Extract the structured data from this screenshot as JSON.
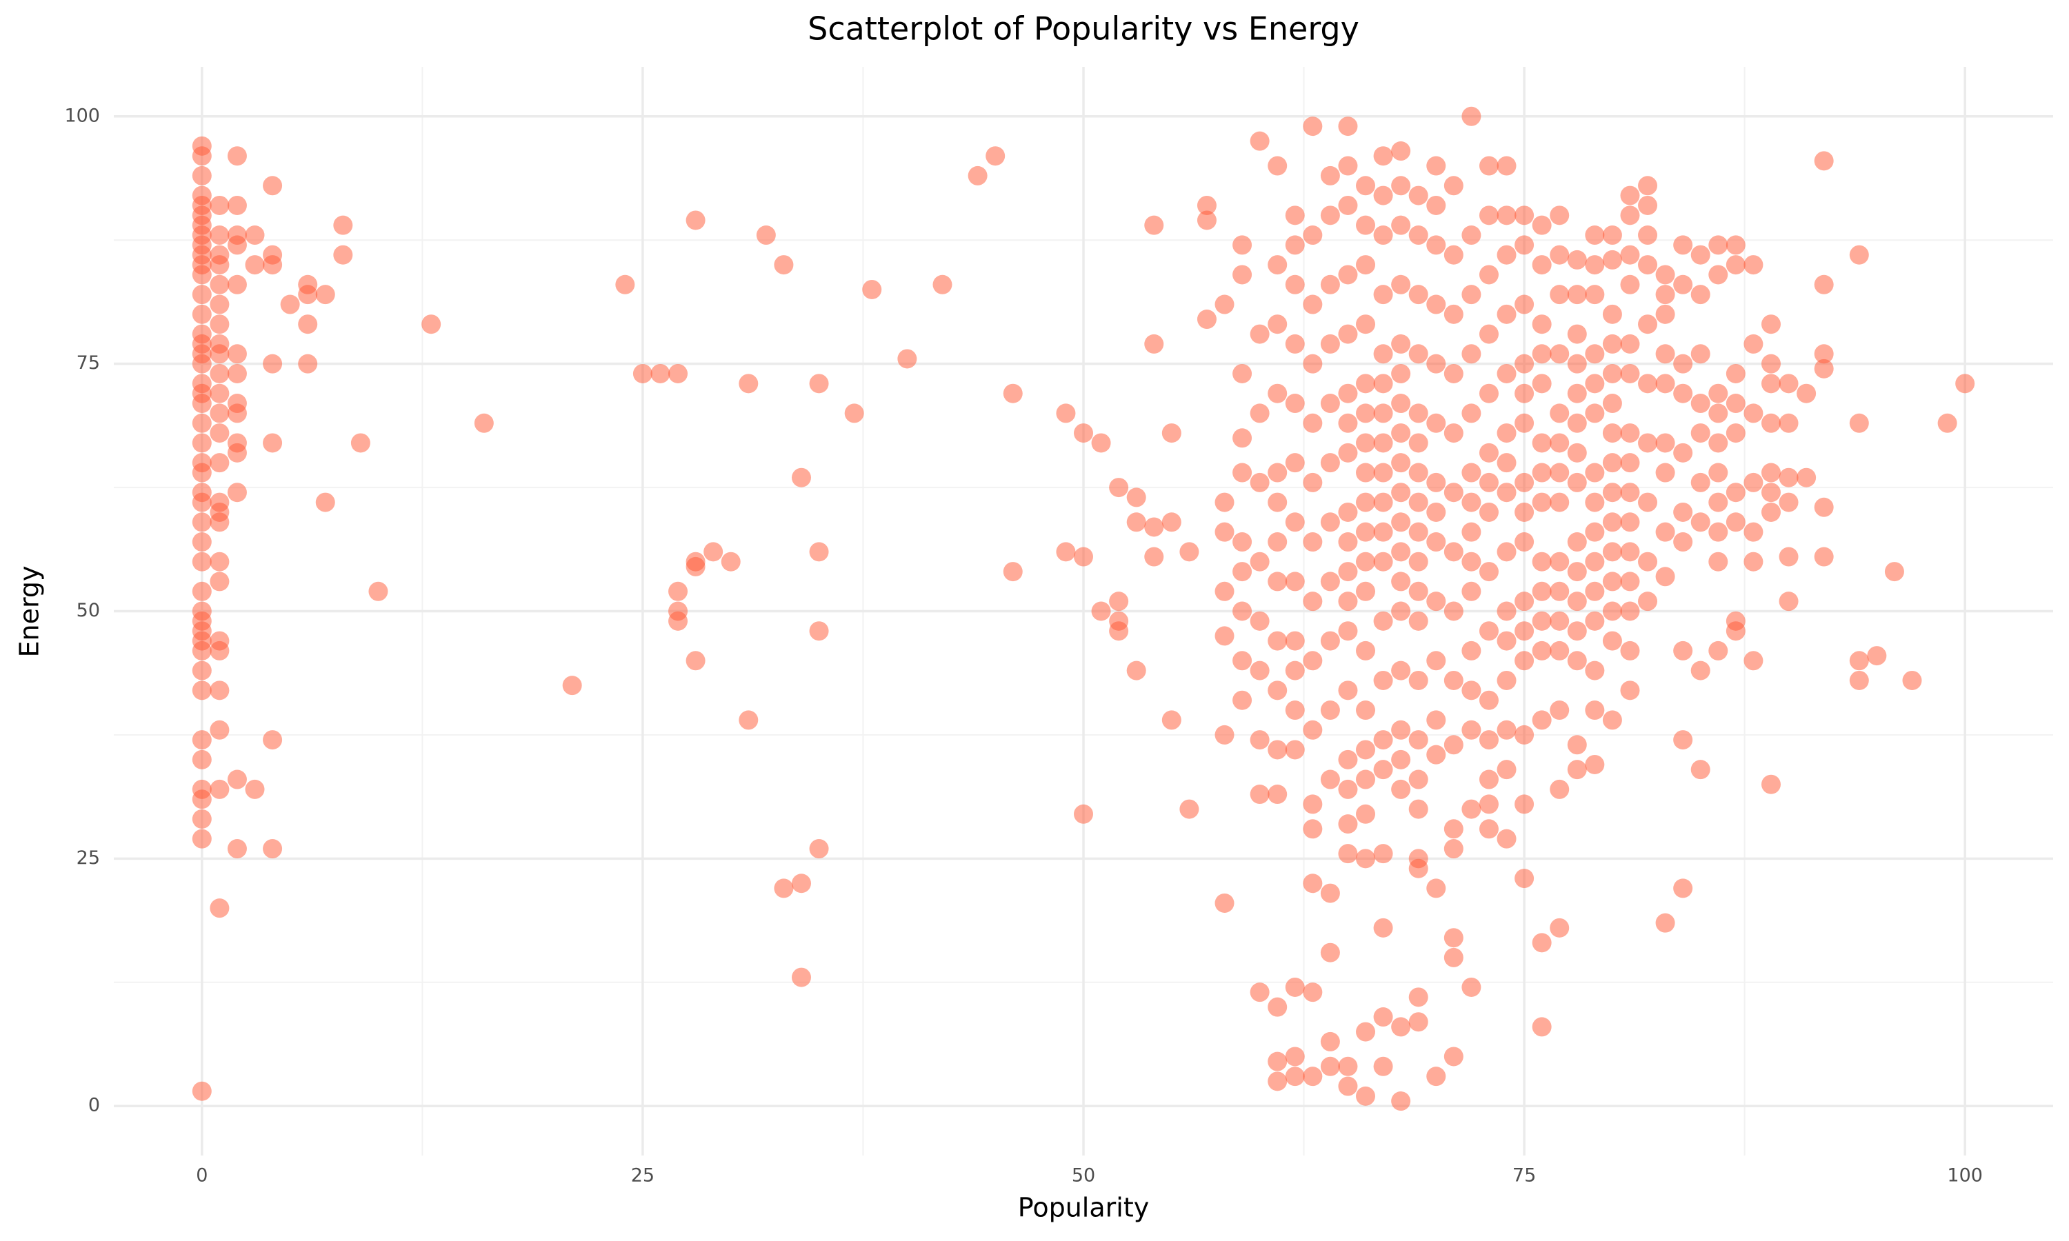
{
  "chart_data": {
    "type": "scatter",
    "title": "Scatterplot of Popularity vs Energy",
    "x_label": "Popularity",
    "y_label": "Energy",
    "xlim": [
      -5,
      105
    ],
    "ylim": [
      -5,
      105
    ],
    "xticks": [
      0,
      25,
      50,
      75,
      100
    ],
    "yticks": [
      0,
      25,
      50,
      75,
      100
    ],
    "x_minor_ticks": [
      12.5,
      37.5,
      62.5,
      87.5
    ],
    "y_minor_ticks": [
      12.5,
      37.5,
      62.5,
      87.5
    ],
    "grid": true,
    "color": "#FF5733",
    "opacity": 0.5,
    "x": [
      0,
      0,
      0,
      0,
      0,
      0,
      0,
      0,
      0,
      0,
      0,
      0,
      0,
      0,
      0,
      0,
      0,
      0,
      0,
      0,
      0,
      0,
      0,
      0,
      0,
      0,
      0,
      0,
      0,
      0,
      0,
      0,
      0,
      0,
      0,
      0,
      0,
      0,
      0,
      0,
      0,
      0,
      0,
      0,
      0,
      1,
      1,
      1,
      1,
      1,
      1,
      1,
      1,
      1,
      1,
      1,
      1,
      1,
      1,
      1,
      1,
      1,
      1,
      1,
      1,
      1,
      1,
      1,
      1,
      1,
      2,
      2,
      2,
      2,
      2,
      2,
      2,
      2,
      2,
      2,
      2,
      2,
      2,
      2,
      3,
      3,
      3,
      4,
      4,
      4,
      4,
      4,
      4,
      4,
      5,
      6,
      6,
      6,
      6,
      7,
      7,
      8,
      8,
      9,
      10,
      13,
      16,
      21,
      24,
      25,
      26,
      27,
      27,
      27,
      27,
      28,
      28,
      28,
      28,
      29,
      30,
      31,
      31,
      32,
      33,
      33,
      34,
      34,
      34,
      35,
      35,
      35,
      35,
      37,
      38,
      40,
      42,
      44,
      45,
      46,
      46,
      49,
      49,
      50,
      50,
      50,
      51,
      51,
      52,
      52,
      52,
      52,
      53,
      53,
      53,
      54,
      54,
      54,
      54,
      55,
      55,
      55,
      56,
      56,
      57,
      57,
      57,
      58,
      58,
      58,
      58,
      58,
      58,
      58,
      59,
      59,
      59,
      59,
      59,
      59,
      59,
      59,
      59,
      59,
      60,
      60,
      60,
      60,
      60,
      60,
      60,
      60,
      60,
      60,
      61,
      61,
      61,
      61,
      61,
      61,
      61,
      61,
      61,
      61,
      61,
      61,
      61,
      61,
      61,
      62,
      62,
      62,
      62,
      62,
      62,
      62,
      62,
      62,
      62,
      62,
      62,
      62,
      62,
      62,
      63,
      63,
      63,
      63,
      63,
      63,
      63,
      63,
      63,
      63,
      63,
      63,
      63,
      63,
      63,
      64,
      64,
      64,
      64,
      64,
      64,
      64,
      64,
      64,
      64,
      64,
      64,
      64,
      64,
      64,
      65,
      65,
      65,
      65,
      65,
      65,
      65,
      65,
      65,
      65,
      65,
      65,
      65,
      65,
      65,
      65,
      65,
      65,
      65,
      65,
      66,
      66,
      66,
      66,
      66,
      66,
      66,
      66,
      66,
      66,
      66,
      66,
      66,
      66,
      66,
      66,
      66,
      66,
      66,
      66,
      67,
      67,
      67,
      67,
      67,
      67,
      67,
      67,
      67,
      67,
      67,
      67,
      67,
      67,
      67,
      67,
      67,
      67,
      67,
      67,
      68,
      68,
      68,
      68,
      68,
      68,
      68,
      68,
      68,
      68,
      68,
      68,
      68,
      68,
      68,
      68,
      68,
      68,
      68,
      68,
      69,
      69,
      69,
      69,
      69,
      69,
      69,
      69,
      69,
      69,
      69,
      69,
      69,
      69,
      69,
      69,
      69,
      69,
      69,
      69,
      70,
      70,
      70,
      70,
      70,
      70,
      70,
      70,
      70,
      70,
      70,
      70,
      70,
      70,
      70,
      71,
      71,
      71,
      71,
      71,
      71,
      71,
      71,
      71,
      71,
      71,
      71,
      71,
      71,
      71,
      72,
      72,
      72,
      72,
      72,
      72,
      72,
      72,
      72,
      72,
      72,
      72,
      72,
      72,
      72,
      73,
      73,
      73,
      73,
      73,
      73,
      73,
      73,
      73,
      73,
      73,
      73,
      73,
      73,
      73,
      74,
      74,
      74,
      74,
      74,
      74,
      74,
      74,
      74,
      74,
      74,
      74,
      74,
      74,
      74,
      75,
      75,
      75,
      75,
      75,
      75,
      75,
      75,
      75,
      75,
      75,
      75,
      75,
      75,
      75,
      76,
      76,
      76,
      76,
      76,
      76,
      76,
      76,
      76,
      76,
      76,
      76,
      76,
      76,
      76,
      77,
      77,
      77,
      77,
      77,
      77,
      77,
      77,
      77,
      77,
      77,
      77,
      77,
      77,
      77,
      78,
      78,
      78,
      78,
      78,
      78,
      78,
      78,
      78,
      78,
      78,
      78,
      78,
      78,
      78,
      79,
      79,
      79,
      79,
      79,
      79,
      79,
      79,
      79,
      79,
      79,
      79,
      79,
      79,
      79,
      80,
      80,
      80,
      80,
      80,
      80,
      80,
      80,
      80,
      80,
      80,
      80,
      80,
      80,
      80,
      81,
      81,
      81,
      81,
      81,
      81,
      81,
      81,
      81,
      81,
      81,
      81,
      81,
      81,
      81,
      82,
      82,
      82,
      82,
      82,
      82,
      82,
      82,
      82,
      82,
      83,
      83,
      83,
      83,
      83,
      83,
      83,
      83,
      83,
      83,
      84,
      84,
      84,
      84,
      84,
      84,
      84,
      84,
      84,
      84,
      85,
      85,
      85,
      85,
      85,
      85,
      85,
      85,
      85,
      86,
      86,
      86,
      86,
      86,
      86,
      86,
      86,
      86,
      86,
      87,
      87,
      87,
      87,
      87,
      87,
      87,
      87,
      87,
      88,
      88,
      88,
      88,
      88,
      88,
      88,
      89,
      89,
      89,
      89,
      89,
      89,
      89,
      89,
      90,
      90,
      90,
      90,
      90,
      90,
      91,
      91,
      92,
      92,
      92,
      92,
      92,
      92,
      94,
      94,
      94,
      94,
      95,
      96,
      97,
      99,
      100
    ],
    "values": [
      97,
      96,
      94,
      92,
      91,
      90,
      89,
      88,
      87,
      86,
      85,
      84,
      82,
      80,
      78,
      77,
      76,
      75,
      73,
      72,
      71,
      69,
      67,
      65,
      64,
      62,
      61,
      59,
      57,
      55,
      52,
      50,
      49,
      48,
      47,
      46,
      44,
      42,
      37,
      35,
      32,
      31,
      29,
      27,
      1.5,
      91,
      88,
      86,
      85,
      83,
      81,
      79,
      77,
      76,
      74,
      72,
      70,
      68,
      65,
      61,
      60,
      59,
      55,
      53,
      47,
      46,
      42,
      38,
      32,
      20,
      96,
      91,
      88,
      87,
      83,
      76,
      74,
      71,
      70,
      67,
      66,
      62,
      33,
      26,
      88,
      85,
      32,
      93,
      86,
      85,
      75,
      67,
      37,
      26,
      81,
      83,
      82,
      79,
      75,
      82,
      61,
      89,
      86,
      67,
      52,
      79,
      69,
      42.5,
      83,
      74,
      74,
      74,
      52,
      50,
      49,
      89.5,
      55,
      54.5,
      45,
      56,
      55,
      73,
      39,
      88,
      85,
      22,
      63.5,
      22.5,
      13,
      73,
      56,
      48,
      26,
      70,
      82.5,
      75.5,
      83,
      94,
      96,
      72,
      54,
      70,
      56,
      68,
      55.5,
      29.5,
      67,
      50,
      62.5,
      51,
      49,
      48,
      61.5,
      59,
      44,
      89,
      77,
      58.5,
      55.5,
      68,
      59,
      39,
      56,
      30,
      91,
      89.5,
      79.5,
      81,
      61,
      58,
      52,
      47.5,
      37.5,
      20.5,
      87,
      84,
      74,
      67.5,
      64,
      57,
      54,
      50,
      45,
      41,
      97.5,
      78,
      70,
      63,
      55,
      49,
      44,
      37,
      31.5,
      11.5,
      95,
      85,
      79,
      72,
      64,
      61,
      57,
      53,
      47,
      42,
      36,
      31.5,
      10,
      4.5,
      2.5,
      90,
      87,
      83,
      77,
      71,
      65,
      59,
      53,
      47,
      44,
      40,
      36,
      12,
      5,
      3,
      99,
      88,
      81,
      75,
      69,
      63,
      57,
      51,
      45,
      38,
      30.5,
      28,
      22.5,
      11.5,
      3,
      94,
      90,
      83,
      77,
      71,
      65,
      59,
      53,
      47,
      40,
      33,
      21.5,
      15.5,
      6.5,
      4,
      99,
      95,
      91,
      84,
      78,
      72,
      69,
      66,
      60,
      57,
      54,
      51,
      48,
      42,
      35,
      32,
      28.5,
      25.5,
      4,
      2,
      93,
      89,
      85,
      79,
      73,
      70,
      67,
      64,
      61,
      58,
      55,
      52,
      46,
      40,
      36,
      33,
      29.5,
      25,
      7.5,
      1,
      96,
      92,
      88,
      82,
      76,
      73,
      70,
      67,
      64,
      61,
      58,
      55,
      49,
      43,
      37,
      34,
      25.5,
      18,
      9,
      4,
      96.5,
      93,
      89,
      83,
      77,
      74,
      71,
      68,
      65,
      62,
      59,
      56,
      53,
      50,
      44,
      38,
      35,
      32,
      8,
      0.5,
      92,
      88,
      82,
      76,
      70,
      67,
      64,
      61,
      58,
      55,
      52,
      49,
      43,
      37,
      33,
      30,
      25,
      24,
      11,
      8.5,
      95,
      91,
      87,
      81,
      75,
      69,
      63,
      60,
      57,
      51,
      45,
      39,
      35.5,
      22,
      3,
      93,
      86,
      80,
      74,
      68,
      62,
      56,
      50,
      43,
      36.5,
      28,
      26,
      17,
      15,
      5,
      100,
      88,
      82,
      76,
      70,
      64,
      61,
      58,
      55,
      52,
      46,
      42,
      38,
      30,
      12,
      95,
      90,
      84,
      78,
      72,
      66,
      63,
      60,
      54,
      48,
      41,
      37,
      33,
      30.5,
      28,
      95,
      90,
      86,
      80,
      74,
      68,
      65,
      62,
      56,
      50,
      47,
      43,
      38,
      34,
      27,
      90,
      87,
      81,
      75,
      72,
      69,
      63,
      60,
      57,
      51,
      48,
      45,
      37.5,
      30.5,
      23,
      89,
      85,
      79,
      76,
      73,
      67,
      64,
      61,
      55,
      52,
      49,
      46,
      39,
      16.5,
      8,
      90,
      86,
      82,
      76,
      70,
      67,
      64,
      61,
      55,
      52,
      49,
      46,
      40,
      32,
      18,
      85.5,
      82,
      78,
      75,
      72,
      69,
      66,
      63,
      57,
      54,
      51,
      48,
      45,
      36.5,
      34,
      88,
      85,
      82,
      76,
      73,
      70,
      64,
      61,
      58,
      55,
      52,
      49,
      44,
      40,
      34.5,
      88,
      85.5,
      80,
      77,
      74,
      71,
      68,
      65,
      62,
      59,
      56,
      53,
      50,
      47,
      39,
      92,
      90,
      86,
      83,
      77,
      74,
      68,
      65,
      62,
      59,
      56,
      53,
      50,
      46,
      42,
      93,
      91,
      88,
      85,
      79,
      73,
      67,
      61,
      55,
      51,
      84,
      82,
      80,
      76,
      73,
      67,
      64,
      58,
      53.5,
      18.5,
      87,
      83,
      75,
      72,
      66,
      60,
      57,
      46,
      37,
      22,
      86,
      82,
      76,
      71,
      68,
      63,
      59,
      44,
      34,
      87,
      84,
      72,
      70,
      67,
      64,
      61,
      58,
      55,
      46,
      87,
      85,
      74,
      71,
      68,
      62,
      59,
      49,
      48,
      85,
      77,
      70,
      63,
      58,
      55,
      45,
      79,
      75,
      73,
      69,
      64,
      62,
      60,
      32.5,
      73,
      69,
      63.5,
      61,
      55.5,
      51,
      72,
      63.5,
      95.5,
      83,
      76,
      74.5,
      60.5,
      55.5,
      86,
      69,
      45,
      43,
      45.5,
      54,
      43,
      69,
      73
    ]
  }
}
